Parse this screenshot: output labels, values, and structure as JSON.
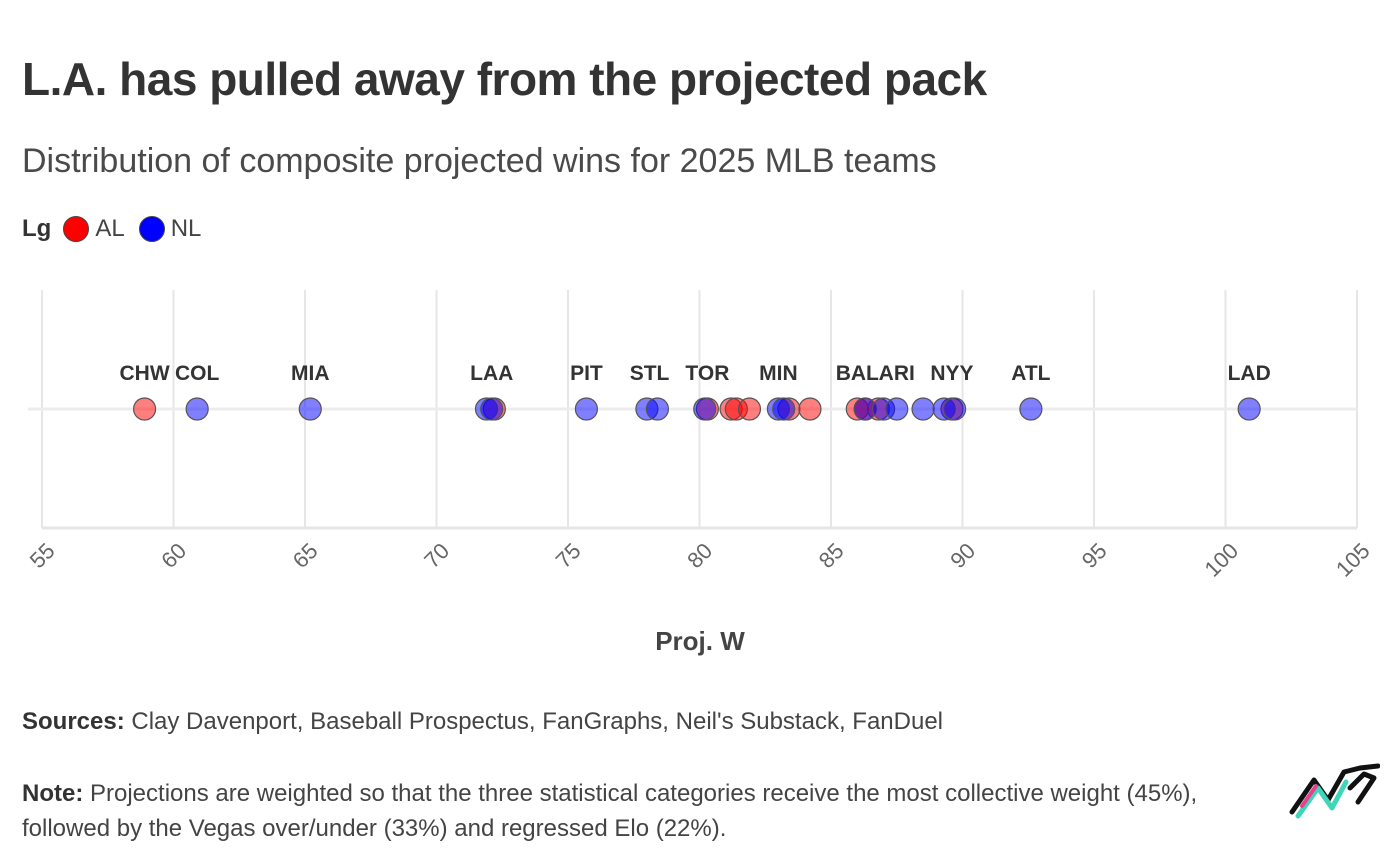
{
  "title": "L.A. has pulled away from the projected pack",
  "subtitle": "Distribution of composite projected wins for 2025 MLB teams",
  "legend": {
    "title": "Lg",
    "items": [
      {
        "label": "AL",
        "color": "#ff0000"
      },
      {
        "label": "NL",
        "color": "#0000ff"
      }
    ]
  },
  "footer": {
    "sources_label": "Sources:",
    "sources_text": " Clay Davenport, Baseball Prospectus, FanGraphs, Neil's Substack, FanDuel",
    "note_label": "Note:",
    "note_text": " Projections are weighted so that the three statistical categories receive the most collective weight (45%), followed by the Vegas over/under (33%) and regressed Elo (22%)."
  },
  "logo_icon": "np-logo-icon",
  "chart_data": {
    "type": "scatter",
    "xlabel": "Proj. W",
    "xlim": [
      55,
      105
    ],
    "xticks": [
      55,
      60,
      65,
      70,
      75,
      80,
      85,
      90,
      95,
      100,
      105
    ],
    "grid": true,
    "series": [
      {
        "name": "AL",
        "color": "#ff0000",
        "x": [
          58.9,
          72.2,
          80.3,
          81.2,
          81.4,
          81.9,
          83.4,
          84.2,
          86.0,
          86.3,
          86.8,
          89.6
        ]
      },
      {
        "name": "NL",
        "color": "#0000ff",
        "x": [
          60.9,
          65.2,
          71.9,
          72.1,
          75.7,
          78.0,
          78.4,
          80.2,
          83.0,
          83.2,
          86.3,
          87.0,
          87.5,
          88.5,
          89.3,
          89.7,
          92.6,
          100.9
        ]
      }
    ],
    "labels": [
      {
        "text": "CHW",
        "x": 58.9
      },
      {
        "text": "COL",
        "x": 60.9
      },
      {
        "text": "MIA",
        "x": 65.2
      },
      {
        "text": "LAA",
        "x": 72.1
      },
      {
        "text": "PIT",
        "x": 75.7
      },
      {
        "text": "STL",
        "x": 78.1
      },
      {
        "text": "TOR",
        "x": 80.3
      },
      {
        "text": "MIN",
        "x": 83.0
      },
      {
        "text": "BAL",
        "x": 86.0
      },
      {
        "text": "ARI",
        "x": 87.5
      },
      {
        "text": "NYY",
        "x": 89.6
      },
      {
        "text": "ATL",
        "x": 92.6
      },
      {
        "text": "LAD",
        "x": 100.9
      }
    ]
  }
}
